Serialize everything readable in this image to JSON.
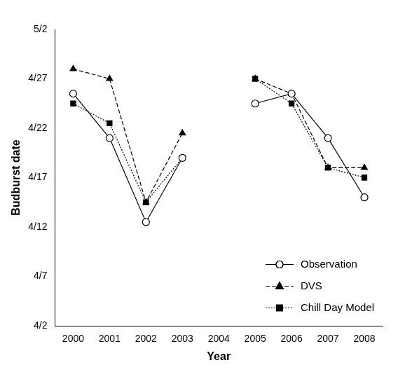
{
  "chart_data": {
    "type": "line",
    "x_label": "Year",
    "y_label": "Budburst date",
    "categories": [
      "2000",
      "2001",
      "2002",
      "2003",
      "2004",
      "2005",
      "2006",
      "2007",
      "2008"
    ],
    "ylim": [
      2,
      32
    ],
    "yticks": [
      {
        "value": 2,
        "label": "4/2"
      },
      {
        "value": 7,
        "label": "4/7"
      },
      {
        "value": 12,
        "label": "4/12"
      },
      {
        "value": 17,
        "label": "4/17"
      },
      {
        "value": 22,
        "label": "4/22"
      },
      {
        "value": 27,
        "label": "4/27"
      },
      {
        "value": 32,
        "label": "5/2"
      }
    ],
    "grid": false,
    "legend": "lower right",
    "series": [
      {
        "name": "Observation",
        "color": "#000000",
        "marker": "circle-open",
        "line_style": "solid",
        "values": [
          25.5,
          21,
          12.5,
          19,
          null,
          24.5,
          25.5,
          21,
          15
        ]
      },
      {
        "name": "DVS",
        "color": "#000000",
        "marker": "triangle",
        "line_style": "dashed",
        "values": [
          28,
          27,
          14.5,
          21.5,
          null,
          27,
          25.5,
          18,
          18
        ]
      },
      {
        "name": "Chill Day Model",
        "color": "#000000",
        "marker": "square",
        "line_style": "dotted",
        "values": [
          24.5,
          22.5,
          14.5,
          19,
          null,
          27,
          24.5,
          18,
          17
        ]
      }
    ]
  }
}
